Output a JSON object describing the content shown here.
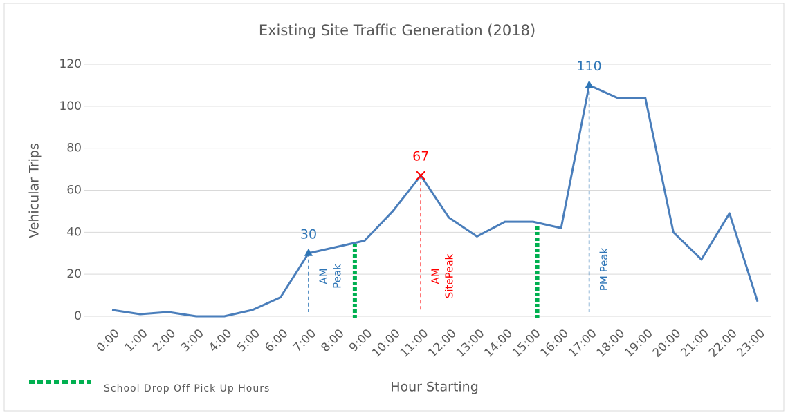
{
  "chart_data": {
    "type": "line",
    "title": "Existing Site Traffic Generation (2018)",
    "x_label": "Hour Starting",
    "y_label": "Vehicular Trips",
    "categories": [
      "0:00",
      "1:00",
      "2:00",
      "3:00",
      "4:00",
      "5:00",
      "6:00",
      "7:00",
      "8:00",
      "9:00",
      "10:00",
      "11:00",
      "12:00",
      "13:00",
      "14:00",
      "15:00",
      "16:00",
      "17:00",
      "18:00",
      "19:00",
      "20:00",
      "21:00",
      "22:00",
      "23:00"
    ],
    "series": [
      {
        "name": "Vehicular Trips",
        "color": "#4a7ebb",
        "values": [
          3,
          1,
          2,
          0,
          0,
          3,
          9,
          30,
          33,
          36,
          50,
          67,
          47,
          38,
          45,
          45,
          42,
          110,
          104,
          104,
          40,
          27,
          49,
          7
        ]
      }
    ],
    "ylim": [
      0,
      120
    ],
    "yticks": [
      0,
      20,
      40,
      60,
      80,
      100,
      120
    ],
    "grid": true,
    "peaks": [
      {
        "x": "7:00",
        "label": [
          "AM",
          "Peak"
        ],
        "color": "#2e75b6",
        "marker": "triangle"
      },
      {
        "x": "11:00",
        "label": [
          "AM",
          "SitePeak"
        ],
        "color": "#ff0000",
        "marker": "cross"
      },
      {
        "x": "17:00",
        "label": [
          "PM Peak"
        ],
        "color": "#2e75b6",
        "marker": "triangle"
      }
    ],
    "school_hours": {
      "label": "School Drop Off Pick Up Hours",
      "color": "#00b050",
      "x": [
        8.65,
        15.15
      ]
    }
  }
}
